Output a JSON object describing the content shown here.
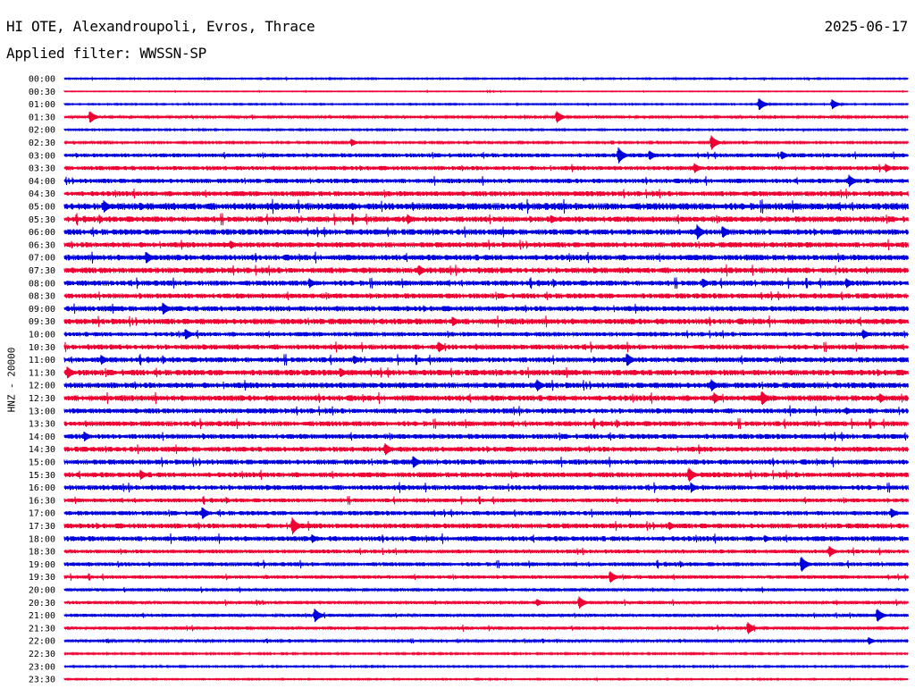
{
  "header": {
    "station": "HI OTE, Alexandroupoli, Evros, Thrace",
    "date": "2025-06-17",
    "filter": "Applied filter: WWSSN-SP"
  },
  "axis": {
    "channel_label": "HNZ - 20000"
  },
  "colors": {
    "even_trace": "#0000dd",
    "odd_trace": "#ee0033",
    "background": "#ffffff"
  },
  "chart_data": {
    "type": "line",
    "title": "HI OTE, Alexandroupoli, Evros, Thrace",
    "subtitle": "Applied filter: WWSSN-SP",
    "ylabel": "HNZ - 20000",
    "xlabel": "",
    "grid": false,
    "legend": "none",
    "trace_length_minutes": 30,
    "row_labels": [
      "00:00",
      "00:30",
      "01:00",
      "01:30",
      "02:00",
      "02:30",
      "03:00",
      "03:30",
      "04:00",
      "04:30",
      "05:00",
      "05:30",
      "06:00",
      "06:30",
      "07:00",
      "07:30",
      "08:00",
      "08:30",
      "09:00",
      "09:30",
      "10:00",
      "10:30",
      "11:00",
      "11:30",
      "12:00",
      "12:30",
      "13:00",
      "13:30",
      "14:00",
      "14:30",
      "15:00",
      "15:30",
      "16:00",
      "16:30",
      "17:00",
      "17:30",
      "18:00",
      "18:30",
      "19:00",
      "19:30",
      "20:00",
      "20:30",
      "21:00",
      "21:30",
      "22:00",
      "22:30",
      "23:00",
      "23:30"
    ],
    "noise_level": [
      0.1,
      0.06,
      0.1,
      0.18,
      0.12,
      0.14,
      0.32,
      0.34,
      0.36,
      0.4,
      0.55,
      0.45,
      0.45,
      0.42,
      0.45,
      0.45,
      0.42,
      0.4,
      0.42,
      0.45,
      0.35,
      0.4,
      0.42,
      0.45,
      0.45,
      0.45,
      0.4,
      0.4,
      0.4,
      0.4,
      0.4,
      0.4,
      0.4,
      0.32,
      0.35,
      0.4,
      0.4,
      0.3,
      0.32,
      0.28,
      0.25,
      0.25,
      0.25,
      0.25,
      0.18,
      0.12,
      0.12,
      0.1
    ],
    "events": [
      {
        "row": 2,
        "minute": 24.7,
        "amplitude": 1.0
      },
      {
        "row": 2,
        "minute": 27.3,
        "amplitude": 0.8
      },
      {
        "row": 3,
        "minute": 0.9,
        "amplitude": 1.0
      },
      {
        "row": 3,
        "minute": 17.5,
        "amplitude": 1.0
      },
      {
        "row": 5,
        "minute": 23.0,
        "amplitude": 1.2
      },
      {
        "row": 5,
        "minute": 10.2,
        "amplitude": 0.6
      },
      {
        "row": 6,
        "minute": 19.7,
        "amplitude": 1.3
      },
      {
        "row": 6,
        "minute": 20.8,
        "amplitude": 0.8
      },
      {
        "row": 6,
        "minute": 25.5,
        "amplitude": 0.7
      },
      {
        "row": 7,
        "minute": 22.4,
        "amplitude": 0.8
      },
      {
        "row": 7,
        "minute": 29.2,
        "amplitude": 0.7
      },
      {
        "row": 8,
        "minute": 27.9,
        "amplitude": 1.0
      },
      {
        "row": 10,
        "minute": 1.4,
        "amplitude": 1.0
      },
      {
        "row": 11,
        "minute": 12.2,
        "amplitude": 0.8
      },
      {
        "row": 11,
        "minute": 17.3,
        "amplitude": 0.7
      },
      {
        "row": 12,
        "minute": 22.5,
        "amplitude": 1.2
      },
      {
        "row": 12,
        "minute": 23.4,
        "amplitude": 1.0
      },
      {
        "row": 13,
        "minute": 5.9,
        "amplitude": 0.7
      },
      {
        "row": 14,
        "minute": 2.9,
        "amplitude": 1.0
      },
      {
        "row": 15,
        "minute": 12.6,
        "amplitude": 0.9
      },
      {
        "row": 16,
        "minute": 8.7,
        "amplitude": 0.8
      },
      {
        "row": 16,
        "minute": 22.7,
        "amplitude": 0.8
      },
      {
        "row": 16,
        "minute": 27.8,
        "amplitude": 0.8
      },
      {
        "row": 18,
        "minute": 3.5,
        "amplitude": 1.0
      },
      {
        "row": 19,
        "minute": 13.8,
        "amplitude": 0.8
      },
      {
        "row": 20,
        "minute": 4.3,
        "amplitude": 0.9
      },
      {
        "row": 20,
        "minute": 28.4,
        "amplitude": 0.8
      },
      {
        "row": 21,
        "minute": 13.3,
        "amplitude": 0.9
      },
      {
        "row": 22,
        "minute": 1.3,
        "amplitude": 0.8
      },
      {
        "row": 22,
        "minute": 10.3,
        "amplitude": 0.7
      },
      {
        "row": 22,
        "minute": 20.0,
        "amplitude": 1.1
      },
      {
        "row": 23,
        "minute": 0.1,
        "amplitude": 1.0
      },
      {
        "row": 23,
        "minute": 9.8,
        "amplitude": 0.8
      },
      {
        "row": 24,
        "minute": 16.8,
        "amplitude": 1.0
      },
      {
        "row": 24,
        "minute": 23.0,
        "amplitude": 1.0
      },
      {
        "row": 25,
        "minute": 23.1,
        "amplitude": 0.9
      },
      {
        "row": 25,
        "minute": 24.8,
        "amplitude": 1.2
      },
      {
        "row": 25,
        "minute": 29.0,
        "amplitude": 0.8
      },
      {
        "row": 26,
        "minute": 27.8,
        "amplitude": 0.6
      },
      {
        "row": 28,
        "minute": 0.7,
        "amplitude": 0.8
      },
      {
        "row": 29,
        "minute": 11.4,
        "amplitude": 1.0
      },
      {
        "row": 30,
        "minute": 12.4,
        "amplitude": 1.0
      },
      {
        "row": 31,
        "minute": 2.7,
        "amplitude": 0.8
      },
      {
        "row": 31,
        "minute": 22.2,
        "amplitude": 1.2
      },
      {
        "row": 32,
        "minute": 22.3,
        "amplitude": 0.7
      },
      {
        "row": 34,
        "minute": 4.9,
        "amplitude": 1.0
      },
      {
        "row": 34,
        "minute": 29.4,
        "amplitude": 0.8
      },
      {
        "row": 35,
        "minute": 8.1,
        "amplitude": 1.4
      },
      {
        "row": 35,
        "minute": 21.5,
        "amplitude": 0.7
      },
      {
        "row": 36,
        "minute": 8.8,
        "amplitude": 0.7
      },
      {
        "row": 36,
        "minute": 24.9,
        "amplitude": 0.6
      },
      {
        "row": 37,
        "minute": 27.2,
        "amplitude": 0.9
      },
      {
        "row": 38,
        "minute": 26.2,
        "amplitude": 1.3
      },
      {
        "row": 39,
        "minute": 19.4,
        "amplitude": 1.0
      },
      {
        "row": 41,
        "minute": 18.3,
        "amplitude": 1.0
      },
      {
        "row": 41,
        "minute": 16.8,
        "amplitude": 0.6
      },
      {
        "row": 42,
        "minute": 8.9,
        "amplitude": 1.1
      },
      {
        "row": 42,
        "minute": 28.9,
        "amplitude": 1.1
      },
      {
        "row": 43,
        "minute": 24.3,
        "amplitude": 1.0
      },
      {
        "row": 44,
        "minute": 28.6,
        "amplitude": 0.6
      }
    ]
  }
}
